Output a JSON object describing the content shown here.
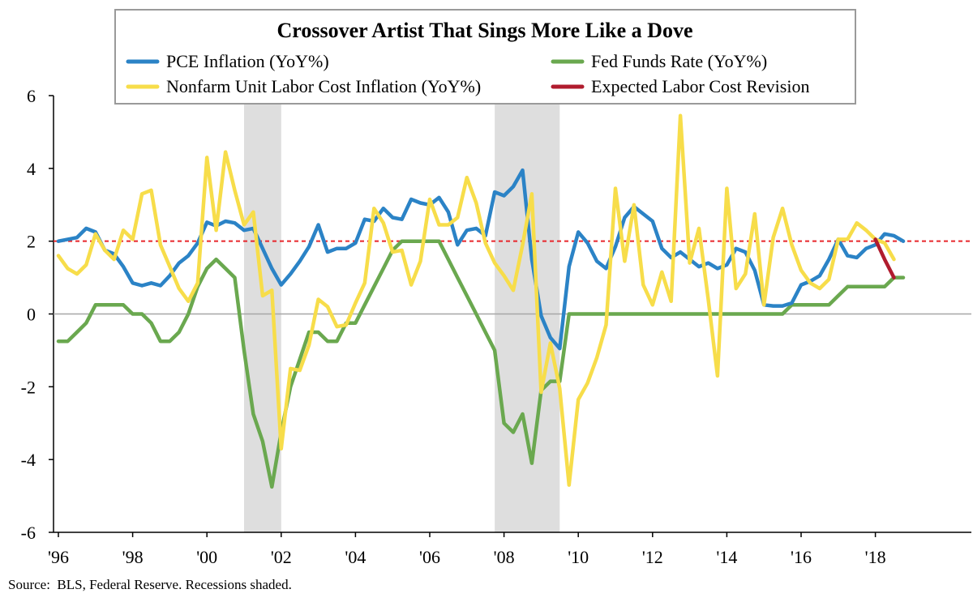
{
  "chart_data": {
    "type": "line",
    "title": "Crossover Artist That Sings More Like a Dove",
    "source": "Source:  BLS, Federal Reserve. Recessions shaded.",
    "xlabel": "",
    "ylabel": "",
    "xlim": [
      1996,
      2019.8
    ],
    "ylim": [
      -6,
      6
    ],
    "y_ticks": [
      6,
      4,
      2,
      0,
      -2,
      -4,
      -6
    ],
    "x_ticks": [
      1996,
      1998,
      2000,
      2002,
      2004,
      2006,
      2008,
      2010,
      2012,
      2014,
      2016,
      2018
    ],
    "x_tick_labels": [
      "'96",
      "'98",
      "'00",
      "'02",
      "'04",
      "'06",
      "'08",
      "'10",
      "'12",
      "'14",
      "'16",
      "'18"
    ],
    "grid": false,
    "reference_line": {
      "value": 2,
      "color": "#e8262b",
      "style": "dashed"
    },
    "recessions": [
      [
        2001.0,
        2002.0
      ],
      [
        2007.75,
        2009.5
      ]
    ],
    "legend_placement": "top",
    "series": [
      {
        "name": "PCE Inflation (YoY%)",
        "color": "#2b83c6",
        "points": [
          [
            1996.0,
            2.0
          ],
          [
            1996.25,
            2.05
          ],
          [
            1996.5,
            2.1
          ],
          [
            1996.75,
            2.35
          ],
          [
            1997.0,
            2.25
          ],
          [
            1997.25,
            1.75
          ],
          [
            1997.5,
            1.65
          ],
          [
            1997.75,
            1.3
          ],
          [
            1998.0,
            0.85
          ],
          [
            1998.25,
            0.78
          ],
          [
            1998.5,
            0.85
          ],
          [
            1998.75,
            0.78
          ],
          [
            1999.0,
            1.05
          ],
          [
            1999.25,
            1.4
          ],
          [
            1999.5,
            1.6
          ],
          [
            1999.75,
            1.95
          ],
          [
            2000.0,
            2.52
          ],
          [
            2000.25,
            2.42
          ],
          [
            2000.5,
            2.55
          ],
          [
            2000.75,
            2.5
          ],
          [
            2001.0,
            2.3
          ],
          [
            2001.25,
            2.35
          ],
          [
            2001.5,
            1.8
          ],
          [
            2001.75,
            1.25
          ],
          [
            2002.0,
            0.8
          ],
          [
            2002.25,
            1.1
          ],
          [
            2002.5,
            1.45
          ],
          [
            2002.75,
            1.85
          ],
          [
            2003.0,
            2.45
          ],
          [
            2003.25,
            1.7
          ],
          [
            2003.5,
            1.8
          ],
          [
            2003.75,
            1.8
          ],
          [
            2004.0,
            1.95
          ],
          [
            2004.25,
            2.6
          ],
          [
            2004.5,
            2.55
          ],
          [
            2004.75,
            2.9
          ],
          [
            2005.0,
            2.65
          ],
          [
            2005.25,
            2.6
          ],
          [
            2005.5,
            3.15
          ],
          [
            2005.75,
            3.05
          ],
          [
            2006.0,
            3.0
          ],
          [
            2006.25,
            3.2
          ],
          [
            2006.5,
            2.8
          ],
          [
            2006.75,
            1.9
          ],
          [
            2007.0,
            2.3
          ],
          [
            2007.25,
            2.35
          ],
          [
            2007.5,
            2.15
          ],
          [
            2007.75,
            3.35
          ],
          [
            2008.0,
            3.25
          ],
          [
            2008.25,
            3.5
          ],
          [
            2008.5,
            3.95
          ],
          [
            2008.75,
            1.5
          ],
          [
            2009.0,
            -0.05
          ],
          [
            2009.25,
            -0.65
          ],
          [
            2009.5,
            -0.95
          ],
          [
            2009.75,
            1.3
          ],
          [
            2010.0,
            2.25
          ],
          [
            2010.25,
            1.95
          ],
          [
            2010.5,
            1.45
          ],
          [
            2010.75,
            1.25
          ],
          [
            2011.0,
            1.85
          ],
          [
            2011.25,
            2.65
          ],
          [
            2011.5,
            2.95
          ],
          [
            2011.75,
            2.75
          ],
          [
            2012.0,
            2.55
          ],
          [
            2012.25,
            1.8
          ],
          [
            2012.5,
            1.55
          ],
          [
            2012.75,
            1.7
          ],
          [
            2013.0,
            1.5
          ],
          [
            2013.25,
            1.3
          ],
          [
            2013.5,
            1.4
          ],
          [
            2013.75,
            1.25
          ],
          [
            2014.0,
            1.35
          ],
          [
            2014.25,
            1.8
          ],
          [
            2014.5,
            1.7
          ],
          [
            2014.75,
            1.2
          ],
          [
            2015.0,
            0.25
          ],
          [
            2015.25,
            0.22
          ],
          [
            2015.5,
            0.22
          ],
          [
            2015.75,
            0.3
          ],
          [
            2016.0,
            0.8
          ],
          [
            2016.25,
            0.9
          ],
          [
            2016.5,
            1.05
          ],
          [
            2016.75,
            1.5
          ],
          [
            2017.0,
            2.05
          ],
          [
            2017.25,
            1.6
          ],
          [
            2017.5,
            1.55
          ],
          [
            2017.75,
            1.8
          ],
          [
            2018.0,
            1.9
          ],
          [
            2018.25,
            2.2
          ],
          [
            2018.5,
            2.15
          ],
          [
            2018.75,
            2.0
          ]
        ]
      },
      {
        "name": "Fed Funds Rate (YoY%)",
        "color": "#6aa84f",
        "points": [
          [
            1996.0,
            -0.75
          ],
          [
            1996.25,
            -0.75
          ],
          [
            1996.5,
            -0.5
          ],
          [
            1996.75,
            -0.25
          ],
          [
            1997.0,
            0.25
          ],
          [
            1997.25,
            0.25
          ],
          [
            1997.5,
            0.25
          ],
          [
            1997.75,
            0.25
          ],
          [
            1998.0,
            0.0
          ],
          [
            1998.25,
            0.0
          ],
          [
            1998.5,
            -0.25
          ],
          [
            1998.75,
            -0.75
          ],
          [
            1999.0,
            -0.75
          ],
          [
            1999.25,
            -0.5
          ],
          [
            1999.5,
            0.0
          ],
          [
            1999.75,
            0.75
          ],
          [
            2000.0,
            1.25
          ],
          [
            2000.25,
            1.5
          ],
          [
            2000.5,
            1.25
          ],
          [
            2000.75,
            1.0
          ],
          [
            2001.0,
            -1.0
          ],
          [
            2001.25,
            -2.75
          ],
          [
            2001.5,
            -3.5
          ],
          [
            2001.75,
            -4.75
          ],
          [
            2002.0,
            -3.25
          ],
          [
            2002.25,
            -2.0
          ],
          [
            2002.5,
            -1.25
          ],
          [
            2002.75,
            -0.5
          ],
          [
            2003.0,
            -0.5
          ],
          [
            2003.25,
            -0.75
          ],
          [
            2003.5,
            -0.75
          ],
          [
            2003.75,
            -0.25
          ],
          [
            2004.0,
            -0.25
          ],
          [
            2004.25,
            0.25
          ],
          [
            2004.5,
            0.75
          ],
          [
            2004.75,
            1.25
          ],
          [
            2005.0,
            1.75
          ],
          [
            2005.25,
            2.0
          ],
          [
            2005.5,
            2.0
          ],
          [
            2005.75,
            2.0
          ],
          [
            2006.0,
            2.0
          ],
          [
            2006.25,
            2.0
          ],
          [
            2006.5,
            1.5
          ],
          [
            2006.75,
            1.0
          ],
          [
            2007.0,
            0.5
          ],
          [
            2007.25,
            0.0
          ],
          [
            2007.5,
            -0.5
          ],
          [
            2007.75,
            -1.0
          ],
          [
            2008.0,
            -3.0
          ],
          [
            2008.25,
            -3.25
          ],
          [
            2008.5,
            -2.75
          ],
          [
            2008.75,
            -4.1
          ],
          [
            2009.0,
            -2.1
          ],
          [
            2009.25,
            -1.85
          ],
          [
            2009.5,
            -1.85
          ],
          [
            2009.75,
            0.0
          ],
          [
            2010.0,
            0.0
          ],
          [
            2011.0,
            0.0
          ],
          [
            2012.0,
            0.0
          ],
          [
            2013.0,
            0.0
          ],
          [
            2014.0,
            0.0
          ],
          [
            2015.0,
            0.0
          ],
          [
            2015.25,
            0.0
          ],
          [
            2015.5,
            0.0
          ],
          [
            2015.75,
            0.25
          ],
          [
            2016.0,
            0.25
          ],
          [
            2016.25,
            0.25
          ],
          [
            2016.5,
            0.25
          ],
          [
            2016.75,
            0.25
          ],
          [
            2017.0,
            0.5
          ],
          [
            2017.25,
            0.75
          ],
          [
            2017.5,
            0.75
          ],
          [
            2017.75,
            0.75
          ],
          [
            2018.0,
            0.75
          ],
          [
            2018.25,
            0.75
          ],
          [
            2018.5,
            1.0
          ],
          [
            2018.75,
            1.0
          ]
        ]
      },
      {
        "name": "Nonfarm Unit Labor Cost Inflation (YoY%)",
        "color": "#f7dd4a",
        "points": [
          [
            1996.0,
            1.6
          ],
          [
            1996.25,
            1.25
          ],
          [
            1996.5,
            1.1
          ],
          [
            1996.75,
            1.35
          ],
          [
            1997.0,
            2.2
          ],
          [
            1997.25,
            1.75
          ],
          [
            1997.5,
            1.5
          ],
          [
            1997.75,
            2.3
          ],
          [
            1998.0,
            2.05
          ],
          [
            1998.25,
            3.3
          ],
          [
            1998.5,
            3.4
          ],
          [
            1998.75,
            1.9
          ],
          [
            1999.0,
            1.3
          ],
          [
            1999.25,
            0.7
          ],
          [
            1999.5,
            0.35
          ],
          [
            1999.75,
            0.85
          ],
          [
            2000.0,
            4.3
          ],
          [
            2000.25,
            2.3
          ],
          [
            2000.5,
            4.45
          ],
          [
            2000.75,
            3.4
          ],
          [
            2001.0,
            2.45
          ],
          [
            2001.25,
            2.8
          ],
          [
            2001.5,
            0.5
          ],
          [
            2001.75,
            0.65
          ],
          [
            2002.0,
            -3.7
          ],
          [
            2002.25,
            -1.5
          ],
          [
            2002.5,
            -1.55
          ],
          [
            2002.75,
            -0.85
          ],
          [
            2003.0,
            0.4
          ],
          [
            2003.25,
            0.2
          ],
          [
            2003.5,
            -0.35
          ],
          [
            2003.75,
            -0.3
          ],
          [
            2004.0,
            0.3
          ],
          [
            2004.25,
            0.85
          ],
          [
            2004.5,
            2.9
          ],
          [
            2004.75,
            2.5
          ],
          [
            2005.0,
            1.7
          ],
          [
            2005.25,
            1.75
          ],
          [
            2005.5,
            0.8
          ],
          [
            2005.75,
            1.45
          ],
          [
            2006.0,
            3.15
          ],
          [
            2006.25,
            2.45
          ],
          [
            2006.5,
            2.45
          ],
          [
            2006.75,
            2.65
          ],
          [
            2007.0,
            3.75
          ],
          [
            2007.25,
            3.05
          ],
          [
            2007.5,
            1.95
          ],
          [
            2007.75,
            1.4
          ],
          [
            2008.0,
            1.05
          ],
          [
            2008.25,
            0.65
          ],
          [
            2008.5,
            1.9
          ],
          [
            2008.75,
            3.3
          ],
          [
            2009.0,
            -2.15
          ],
          [
            2009.25,
            -0.8
          ],
          [
            2009.5,
            -2.05
          ],
          [
            2009.75,
            -4.7
          ],
          [
            2010.0,
            -2.35
          ],
          [
            2010.25,
            -1.9
          ],
          [
            2010.5,
            -1.2
          ],
          [
            2010.75,
            -0.3
          ],
          [
            2011.0,
            3.45
          ],
          [
            2011.25,
            1.45
          ],
          [
            2011.5,
            3.0
          ],
          [
            2011.75,
            0.8
          ],
          [
            2012.0,
            0.25
          ],
          [
            2012.25,
            1.15
          ],
          [
            2012.5,
            0.35
          ],
          [
            2012.75,
            5.45
          ],
          [
            2013.0,
            1.4
          ],
          [
            2013.25,
            2.35
          ],
          [
            2013.5,
            0.4
          ],
          [
            2013.75,
            -1.7
          ],
          [
            2014.0,
            3.45
          ],
          [
            2014.25,
            0.7
          ],
          [
            2014.5,
            1.1
          ],
          [
            2014.75,
            2.75
          ],
          [
            2015.0,
            0.25
          ],
          [
            2015.25,
            2.1
          ],
          [
            2015.5,
            2.9
          ],
          [
            2015.75,
            1.9
          ],
          [
            2016.0,
            1.2
          ],
          [
            2016.25,
            0.85
          ],
          [
            2016.5,
            0.7
          ],
          [
            2016.75,
            0.95
          ],
          [
            2017.0,
            2.05
          ],
          [
            2017.25,
            2.05
          ],
          [
            2017.5,
            2.5
          ],
          [
            2017.75,
            2.3
          ],
          [
            2018.0,
            2.05
          ],
          [
            2018.25,
            1.95
          ],
          [
            2018.5,
            1.5
          ]
        ]
      },
      {
        "name": "Expected Labor Cost Revision",
        "color": "#b01c2e",
        "points": [
          [
            2018.0,
            2.05
          ],
          [
            2018.25,
            1.5
          ],
          [
            2018.5,
            1.0
          ]
        ]
      }
    ]
  }
}
